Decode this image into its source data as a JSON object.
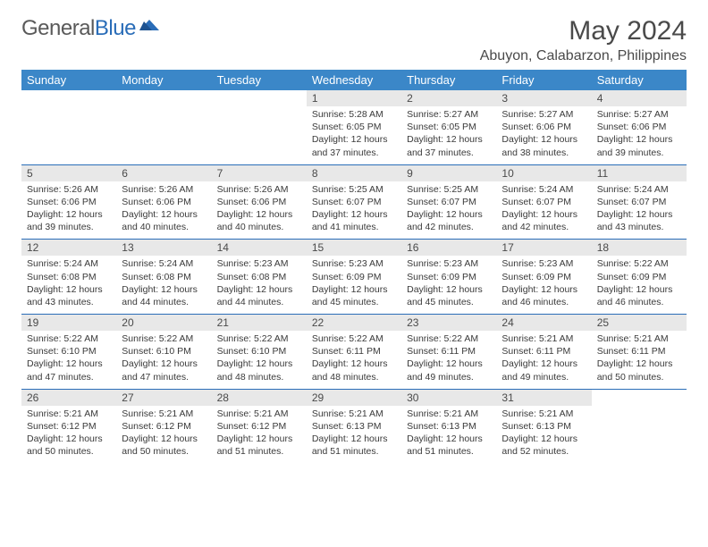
{
  "logo": {
    "general": "General",
    "blue": "Blue"
  },
  "title": "May 2024",
  "location": "Abuyon, Calabarzon, Philippines",
  "header_bg": "#3b87c8",
  "border_color": "#2a6db8",
  "daynum_bg": "#e8e8e8",
  "columns": [
    "Sunday",
    "Monday",
    "Tuesday",
    "Wednesday",
    "Thursday",
    "Friday",
    "Saturday"
  ],
  "weeks": [
    [
      null,
      null,
      null,
      {
        "n": "1",
        "sr": "5:28 AM",
        "ss": "6:05 PM",
        "dl": "12 hours and 37 minutes."
      },
      {
        "n": "2",
        "sr": "5:27 AM",
        "ss": "6:05 PM",
        "dl": "12 hours and 37 minutes."
      },
      {
        "n": "3",
        "sr": "5:27 AM",
        "ss": "6:06 PM",
        "dl": "12 hours and 38 minutes."
      },
      {
        "n": "4",
        "sr": "5:27 AM",
        "ss": "6:06 PM",
        "dl": "12 hours and 39 minutes."
      }
    ],
    [
      {
        "n": "5",
        "sr": "5:26 AM",
        "ss": "6:06 PM",
        "dl": "12 hours and 39 minutes."
      },
      {
        "n": "6",
        "sr": "5:26 AM",
        "ss": "6:06 PM",
        "dl": "12 hours and 40 minutes."
      },
      {
        "n": "7",
        "sr": "5:26 AM",
        "ss": "6:06 PM",
        "dl": "12 hours and 40 minutes."
      },
      {
        "n": "8",
        "sr": "5:25 AM",
        "ss": "6:07 PM",
        "dl": "12 hours and 41 minutes."
      },
      {
        "n": "9",
        "sr": "5:25 AM",
        "ss": "6:07 PM",
        "dl": "12 hours and 42 minutes."
      },
      {
        "n": "10",
        "sr": "5:24 AM",
        "ss": "6:07 PM",
        "dl": "12 hours and 42 minutes."
      },
      {
        "n": "11",
        "sr": "5:24 AM",
        "ss": "6:07 PM",
        "dl": "12 hours and 43 minutes."
      }
    ],
    [
      {
        "n": "12",
        "sr": "5:24 AM",
        "ss": "6:08 PM",
        "dl": "12 hours and 43 minutes."
      },
      {
        "n": "13",
        "sr": "5:24 AM",
        "ss": "6:08 PM",
        "dl": "12 hours and 44 minutes."
      },
      {
        "n": "14",
        "sr": "5:23 AM",
        "ss": "6:08 PM",
        "dl": "12 hours and 44 minutes."
      },
      {
        "n": "15",
        "sr": "5:23 AM",
        "ss": "6:09 PM",
        "dl": "12 hours and 45 minutes."
      },
      {
        "n": "16",
        "sr": "5:23 AM",
        "ss": "6:09 PM",
        "dl": "12 hours and 45 minutes."
      },
      {
        "n": "17",
        "sr": "5:23 AM",
        "ss": "6:09 PM",
        "dl": "12 hours and 46 minutes."
      },
      {
        "n": "18",
        "sr": "5:22 AM",
        "ss": "6:09 PM",
        "dl": "12 hours and 46 minutes."
      }
    ],
    [
      {
        "n": "19",
        "sr": "5:22 AM",
        "ss": "6:10 PM",
        "dl": "12 hours and 47 minutes."
      },
      {
        "n": "20",
        "sr": "5:22 AM",
        "ss": "6:10 PM",
        "dl": "12 hours and 47 minutes."
      },
      {
        "n": "21",
        "sr": "5:22 AM",
        "ss": "6:10 PM",
        "dl": "12 hours and 48 minutes."
      },
      {
        "n": "22",
        "sr": "5:22 AM",
        "ss": "6:11 PM",
        "dl": "12 hours and 48 minutes."
      },
      {
        "n": "23",
        "sr": "5:22 AM",
        "ss": "6:11 PM",
        "dl": "12 hours and 49 minutes."
      },
      {
        "n": "24",
        "sr": "5:21 AM",
        "ss": "6:11 PM",
        "dl": "12 hours and 49 minutes."
      },
      {
        "n": "25",
        "sr": "5:21 AM",
        "ss": "6:11 PM",
        "dl": "12 hours and 50 minutes."
      }
    ],
    [
      {
        "n": "26",
        "sr": "5:21 AM",
        "ss": "6:12 PM",
        "dl": "12 hours and 50 minutes."
      },
      {
        "n": "27",
        "sr": "5:21 AM",
        "ss": "6:12 PM",
        "dl": "12 hours and 50 minutes."
      },
      {
        "n": "28",
        "sr": "5:21 AM",
        "ss": "6:12 PM",
        "dl": "12 hours and 51 minutes."
      },
      {
        "n": "29",
        "sr": "5:21 AM",
        "ss": "6:13 PM",
        "dl": "12 hours and 51 minutes."
      },
      {
        "n": "30",
        "sr": "5:21 AM",
        "ss": "6:13 PM",
        "dl": "12 hours and 51 minutes."
      },
      {
        "n": "31",
        "sr": "5:21 AM",
        "ss": "6:13 PM",
        "dl": "12 hours and 52 minutes."
      },
      null
    ]
  ],
  "labels": {
    "sunrise": "Sunrise:",
    "sunset": "Sunset:",
    "daylight": "Daylight:"
  }
}
